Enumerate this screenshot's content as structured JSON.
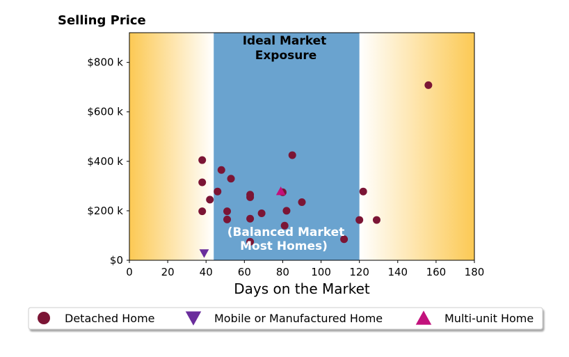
{
  "chart_data": {
    "type": "scatter",
    "ylabel": "Selling Price",
    "xlabel": "Days on the Market",
    "xlim": [
      0,
      180
    ],
    "ylim": [
      0,
      920000
    ],
    "x_ticks": [
      0,
      20,
      40,
      60,
      80,
      100,
      120,
      140,
      160,
      180
    ],
    "x_tick_labels": [
      "0",
      "20",
      "40",
      "60",
      "80",
      "100",
      "120",
      "140",
      "160",
      "180"
    ],
    "y_ticks": [
      0,
      200000,
      400000,
      600000,
      800000
    ],
    "y_tick_labels": [
      "$0",
      "$200 k",
      "$400 k",
      "$600 k",
      "$800 k"
    ],
    "grid": false,
    "legend_position": "bottom",
    "bands": [
      {
        "x_start": 0,
        "x_end": 44,
        "fill": "gradient-left",
        "color": "#fcc954"
      },
      {
        "x_start": 44,
        "x_end": 120,
        "fill": "solid",
        "color": "#6aa3cf"
      },
      {
        "x_start": 120,
        "x_end": 180,
        "fill": "gradient-right",
        "color": "#fcc954"
      }
    ],
    "band_labels": {
      "top_line1": "Ideal Market",
      "top_line2": "Exposure",
      "bottom_line1": "(Balanced Market",
      "bottom_line2": "Most Homes)"
    },
    "series": [
      {
        "name": "Detached Home",
        "marker": "circle",
        "color": "#7b1535",
        "points": [
          {
            "x": 38,
            "y": 405000
          },
          {
            "x": 38,
            "y": 315000
          },
          {
            "x": 38,
            "y": 198000
          },
          {
            "x": 42,
            "y": 245000
          },
          {
            "x": 46,
            "y": 278000
          },
          {
            "x": 48,
            "y": 365000
          },
          {
            "x": 51,
            "y": 198000
          },
          {
            "x": 51,
            "y": 165000
          },
          {
            "x": 53,
            "y": 330000
          },
          {
            "x": 63,
            "y": 265000
          },
          {
            "x": 63,
            "y": 255000
          },
          {
            "x": 63,
            "y": 168000
          },
          {
            "x": 63,
            "y": 75000
          },
          {
            "x": 69,
            "y": 190000
          },
          {
            "x": 80,
            "y": 275000
          },
          {
            "x": 81,
            "y": 140000
          },
          {
            "x": 82,
            "y": 200000
          },
          {
            "x": 85,
            "y": 425000
          },
          {
            "x": 90,
            "y": 235000
          },
          {
            "x": 112,
            "y": 85000
          },
          {
            "x": 120,
            "y": 163000
          },
          {
            "x": 122,
            "y": 278000
          },
          {
            "x": 129,
            "y": 163000
          },
          {
            "x": 156,
            "y": 708000
          }
        ]
      },
      {
        "name": "Mobile or Manufactured Home",
        "marker": "triangle-down",
        "color": "#6a2d9c",
        "points": [
          {
            "x": 39,
            "y": 28000
          }
        ]
      },
      {
        "name": "Multi-unit Home",
        "marker": "triangle-up",
        "color": "#c2127c",
        "points": [
          {
            "x": 79,
            "y": 280000
          }
        ]
      }
    ]
  }
}
